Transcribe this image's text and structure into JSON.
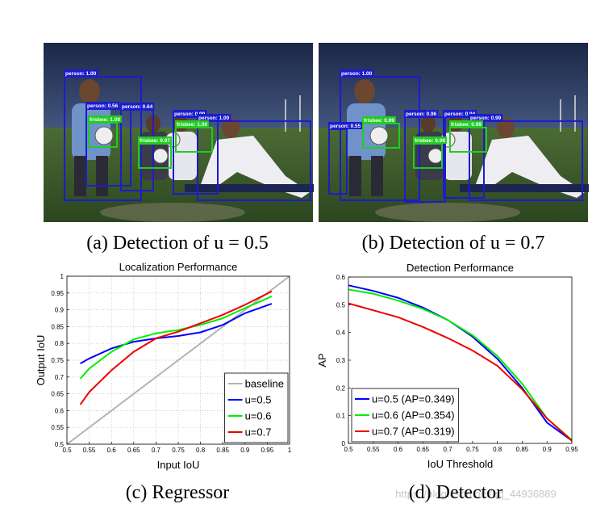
{
  "figures": [
    {
      "caption": "(a) Detection of u = 0.5",
      "detections": [
        {
          "label": "person: 1.00",
          "color": "#1c1ccc"
        },
        {
          "label": "person: 0.56",
          "color": "#1c1ccc"
        },
        {
          "label": "person: 0.64",
          "color": "#1c1ccc"
        },
        {
          "label": "person: 0.99",
          "color": "#1c1ccc"
        },
        {
          "label": "person: 1.00",
          "color": "#1c1ccc"
        },
        {
          "label": "frisbee: 1.00",
          "color": "#22cc22"
        },
        {
          "label": "frisbee: 0.97",
          "color": "#22cc22"
        },
        {
          "label": "frisbee: 1.00",
          "color": "#22cc22"
        }
      ]
    },
    {
      "caption": "(b) Detection of u = 0.7",
      "detections": [
        {
          "label": "person: 1.00",
          "color": "#1c1ccc"
        },
        {
          "label": "person: 0.55",
          "color": "#1c1ccc"
        },
        {
          "label": "person: 0.96",
          "color": "#1c1ccc"
        },
        {
          "label": "person: 0.94",
          "color": "#1c1ccc"
        },
        {
          "label": "person: 0.99",
          "color": "#1c1ccc"
        },
        {
          "label": "frisbee: 0.99",
          "color": "#22cc22"
        },
        {
          "label": "frisbee: 0.98",
          "color": "#22cc22"
        },
        {
          "label": "frisbee: 0.99",
          "color": "#22cc22"
        }
      ]
    }
  ],
  "chart_data": [
    {
      "type": "line",
      "title": "Localization Performance",
      "caption": "(c) Regressor",
      "x_label": "Input IoU",
      "y_label": "Output IoU",
      "xlim": [
        0.5,
        1
      ],
      "xticks": [
        0.5,
        0.55,
        0.6,
        0.65,
        0.7,
        0.75,
        0.8,
        0.85,
        0.9,
        0.95,
        1
      ],
      "ylim": [
        0.5,
        1
      ],
      "yticks": [
        0.5,
        0.55,
        0.6,
        0.65,
        0.7,
        0.75,
        0.8,
        0.85,
        0.9,
        0.95,
        1
      ],
      "grid": true,
      "legend_position": "lower right",
      "series": [
        {
          "name": "baseline",
          "color": "#b3b3b3",
          "x": [
            0.5,
            1
          ],
          "values": [
            0.5,
            1
          ]
        },
        {
          "name": "u=0.5",
          "color": "#0000ff",
          "x": [
            0.53,
            0.55,
            0.6,
            0.65,
            0.7,
            0.75,
            0.8,
            0.85,
            0.9,
            0.96
          ],
          "values": [
            0.74,
            0.755,
            0.785,
            0.805,
            0.815,
            0.822,
            0.833,
            0.855,
            0.89,
            0.918
          ]
        },
        {
          "name": "u=0.6",
          "color": "#00ee00",
          "x": [
            0.53,
            0.55,
            0.6,
            0.65,
            0.7,
            0.75,
            0.8,
            0.85,
            0.9,
            0.96
          ],
          "values": [
            0.695,
            0.725,
            0.775,
            0.812,
            0.83,
            0.84,
            0.855,
            0.875,
            0.905,
            0.94
          ]
        },
        {
          "name": "u=0.7",
          "color": "#ee0000",
          "x": [
            0.53,
            0.55,
            0.6,
            0.65,
            0.7,
            0.75,
            0.8,
            0.85,
            0.9,
            0.96
          ],
          "values": [
            0.618,
            0.655,
            0.72,
            0.775,
            0.815,
            0.835,
            0.86,
            0.885,
            0.915,
            0.955
          ]
        }
      ]
    },
    {
      "type": "line",
      "title": "Detection Performance",
      "caption": "(d) Detector",
      "x_label": "IoU Threshold",
      "y_label": "AP",
      "xlim": [
        0.5,
        0.95
      ],
      "xticks": [
        0.5,
        0.55,
        0.6,
        0.65,
        0.7,
        0.75,
        0.8,
        0.85,
        0.9,
        0.95
      ],
      "ylim": [
        0,
        0.6
      ],
      "yticks": [
        0,
        0.1,
        0.2,
        0.3,
        0.4,
        0.5,
        0.6
      ],
      "grid": false,
      "legend_position": "lower left",
      "series": [
        {
          "name": "u=0.5 (AP=0.349)",
          "color": "#0000ff",
          "x": [
            0.5,
            0.55,
            0.6,
            0.65,
            0.7,
            0.75,
            0.8,
            0.85,
            0.9,
            0.95
          ],
          "values": [
            0.57,
            0.55,
            0.525,
            0.49,
            0.445,
            0.385,
            0.305,
            0.2,
            0.075,
            0.01
          ]
        },
        {
          "name": "u=0.6 (AP=0.354)",
          "color": "#00ee00",
          "x": [
            0.5,
            0.55,
            0.6,
            0.65,
            0.7,
            0.75,
            0.8,
            0.85,
            0.9,
            0.95
          ],
          "values": [
            0.555,
            0.54,
            0.515,
            0.485,
            0.445,
            0.39,
            0.315,
            0.215,
            0.09,
            0.012
          ]
        },
        {
          "name": "u=0.7 (AP=0.319)",
          "color": "#ee0000",
          "x": [
            0.5,
            0.55,
            0.6,
            0.65,
            0.7,
            0.75,
            0.8,
            0.85,
            0.9,
            0.95
          ],
          "values": [
            0.505,
            0.48,
            0.455,
            0.42,
            0.38,
            0.335,
            0.28,
            0.195,
            0.09,
            0.01
          ]
        }
      ]
    }
  ],
  "watermark": "https://blog.csdn.net/qq_44936889"
}
